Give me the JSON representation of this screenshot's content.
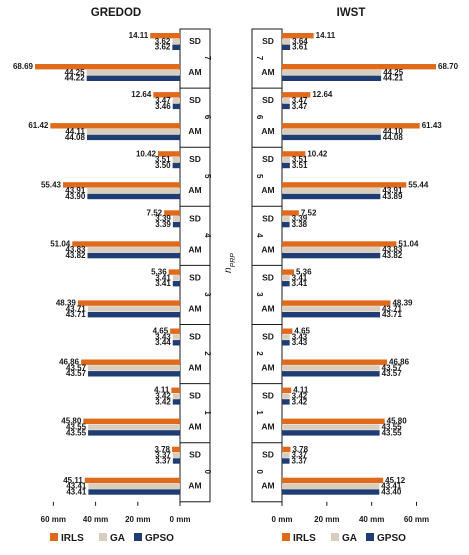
{
  "chart_data": [
    {
      "type": "bar",
      "orientation": "horizontal-left",
      "title": "GREDOD",
      "ylabel": "n_PRP",
      "groups": [
        "7",
        "6",
        "5",
        "4",
        "3",
        "2",
        "1",
        "0"
      ],
      "stats": [
        "SD",
        "AM"
      ],
      "xticks": [
        "60 mm",
        "40 mm",
        "20 mm",
        "0 mm"
      ],
      "xlim": [
        0,
        70
      ],
      "series": [
        {
          "name": "IRLS",
          "color": "#E06A1B",
          "SD": [
            14.11,
            12.64,
            10.42,
            7.52,
            5.36,
            4.65,
            4.11,
            3.78
          ],
          "AM": [
            68.69,
            61.42,
            55.43,
            51.04,
            48.39,
            46.86,
            45.8,
            45.11
          ],
          "SD_labels": [
            "14.11",
            "12.64",
            "10.42",
            "7.52",
            "5.36",
            "4.65",
            "4.11",
            "3.78"
          ],
          "AM_labels": [
            "68.69",
            "61.42",
            "55.43",
            "51.04",
            "48.39",
            "46.86",
            "45.80",
            "45.11"
          ]
        },
        {
          "name": "GA",
          "color": "#D9CDBE",
          "SD": [
            3.62,
            3.47,
            3.51,
            3.39,
            3.41,
            3.43,
            3.42,
            3.37
          ],
          "AM": [
            44.25,
            44.11,
            43.91,
            43.83,
            43.71,
            43.57,
            43.55,
            43.41
          ],
          "SD_labels": [
            "3.62",
            "3.47",
            "3.51",
            "3.39",
            "3.41",
            "3.43",
            "3.42",
            "3.37"
          ],
          "AM_labels": [
            "44.25",
            "44.11",
            "43.91",
            "43.83",
            "43.71",
            "43.57",
            "43.55",
            "43.41"
          ]
        },
        {
          "name": "GPSO",
          "color": "#1F3D73",
          "SD": [
            3.62,
            3.46,
            3.5,
            3.39,
            3.41,
            3.44,
            3.42,
            3.37
          ],
          "AM": [
            44.22,
            44.08,
            43.9,
            43.82,
            43.71,
            43.57,
            43.55,
            43.41
          ],
          "SD_labels": [
            "3.62",
            "3.46",
            "3.50",
            "3.39",
            "3.41",
            "3.44",
            "3.42",
            "3.37"
          ],
          "AM_labels": [
            "44.22",
            "44.08",
            "43.90",
            "43.82",
            "43.71",
            "43.57",
            "43.55",
            "43.41"
          ]
        }
      ]
    },
    {
      "type": "bar",
      "orientation": "horizontal-right",
      "title": "IWST",
      "groups": [
        "7",
        "6",
        "5",
        "4",
        "3",
        "2",
        "1",
        "0"
      ],
      "stats": [
        "SD",
        "AM"
      ],
      "xticks": [
        "0 mm",
        "20 mm",
        "40 mm",
        "60 mm"
      ],
      "xlim": [
        0,
        70
      ],
      "series": [
        {
          "name": "IRLS",
          "color": "#E06A1B",
          "SD": [
            14.11,
            12.64,
            10.42,
            7.52,
            5.36,
            4.65,
            4.11,
            3.78
          ],
          "AM": [
            68.7,
            61.43,
            55.44,
            51.04,
            48.39,
            46.86,
            45.8,
            45.12
          ],
          "SD_labels": [
            "14.11",
            "12.64",
            "10.42",
            "7.52",
            "5.36",
            "4.65",
            "4.11",
            "3.78"
          ],
          "AM_labels": [
            "68.70",
            "61.43",
            "55.44",
            "51.04",
            "48.39",
            "46.86",
            "45.80",
            "45.12"
          ]
        },
        {
          "name": "GA",
          "color": "#D9CDBE",
          "SD": [
            3.64,
            3.47,
            3.51,
            3.39,
            3.41,
            3.43,
            3.42,
            3.37
          ],
          "AM": [
            44.25,
            44.1,
            43.91,
            43.83,
            43.71,
            43.57,
            43.55,
            43.41
          ],
          "SD_labels": [
            "3.64",
            "3.47",
            "3.51",
            "3.39",
            "3.41",
            "3.43",
            "3.42",
            "3.37"
          ],
          "AM_labels": [
            "44.25",
            "44.10",
            "43.91",
            "43.83",
            "43.71",
            "43.57",
            "43.55",
            "43.41"
          ]
        },
        {
          "name": "GPSO",
          "color": "#1F3D73",
          "SD": [
            3.61,
            3.47,
            3.51,
            3.38,
            3.41,
            3.43,
            3.42,
            3.37
          ],
          "AM": [
            44.21,
            44.08,
            43.89,
            43.82,
            43.71,
            43.57,
            43.55,
            43.4
          ],
          "SD_labels": [
            "3.61",
            "3.47",
            "3.51",
            "3.38",
            "3.41",
            "3.43",
            "3.42",
            "3.37"
          ],
          "AM_labels": [
            "44.21",
            "44.08",
            "43.89",
            "43.82",
            "43.71",
            "43.57",
            "43.55",
            "43.40"
          ]
        }
      ]
    }
  ],
  "legend": {
    "items": [
      {
        "name": "IRLS",
        "color": "#E06A1B"
      },
      {
        "name": "GA",
        "color": "#D9CDBE"
      },
      {
        "name": "GPSO",
        "color": "#1F3D73"
      }
    ],
    "placement": "bottom"
  }
}
